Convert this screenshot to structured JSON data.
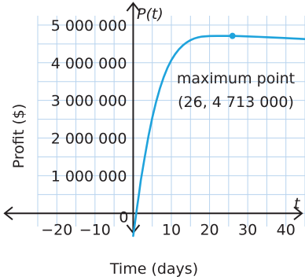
{
  "chart_data": {
    "type": "line",
    "xlabel": "Time (days)",
    "ylabel": "Profit ($)",
    "x_axis_var": "t",
    "y_axis_var": "P(t)",
    "xlim": [
      -25,
      45
    ],
    "ylim": [
      -600000,
      5500000
    ],
    "x_ticks": [
      -20,
      -10,
      0,
      10,
      20,
      30,
      40
    ],
    "x_tick_labels": [
      "−20",
      "−10",
      "0",
      "10",
      "20",
      "30",
      "40"
    ],
    "y_ticks": [
      1000000,
      2000000,
      3000000,
      4000000,
      5000000
    ],
    "y_tick_labels": [
      "1 000 000",
      "2 000 000",
      "3 000 000",
      "4 000 000",
      "5 000 000"
    ],
    "grid": true,
    "series": [
      {
        "color": "#1fa3dc",
        "points": [
          [
            0,
            -600000
          ],
          [
            0.5,
            -230000
          ],
          [
            1,
            150000
          ],
          [
            1.5,
            500000
          ],
          [
            2,
            880000
          ],
          [
            3,
            1480000
          ],
          [
            4,
            2050000
          ],
          [
            5,
            2540000
          ],
          [
            6,
            2960000
          ],
          [
            7,
            3320000
          ],
          [
            8,
            3620000
          ],
          [
            9,
            3870000
          ],
          [
            10,
            4070000
          ],
          [
            11,
            4230000
          ],
          [
            12,
            4360000
          ],
          [
            13,
            4460000
          ],
          [
            14,
            4540000
          ],
          [
            15,
            4600000
          ],
          [
            16,
            4645000
          ],
          [
            17,
            4675000
          ],
          [
            18,
            4695000
          ],
          [
            20,
            4710000
          ],
          [
            22,
            4713000
          ],
          [
            24,
            4713000
          ],
          [
            26,
            4713000
          ],
          [
            28,
            4708000
          ],
          [
            30,
            4700000
          ],
          [
            33,
            4688000
          ],
          [
            36,
            4674000
          ],
          [
            39,
            4660000
          ],
          [
            42,
            4645000
          ],
          [
            45,
            4630000
          ]
        ]
      }
    ],
    "max_point": {
      "x": 26,
      "y": 4713000,
      "color": "#1fa3dc"
    },
    "annotation": {
      "line1": "maximum point",
      "line2": "(26, 4 713 000)"
    }
  }
}
